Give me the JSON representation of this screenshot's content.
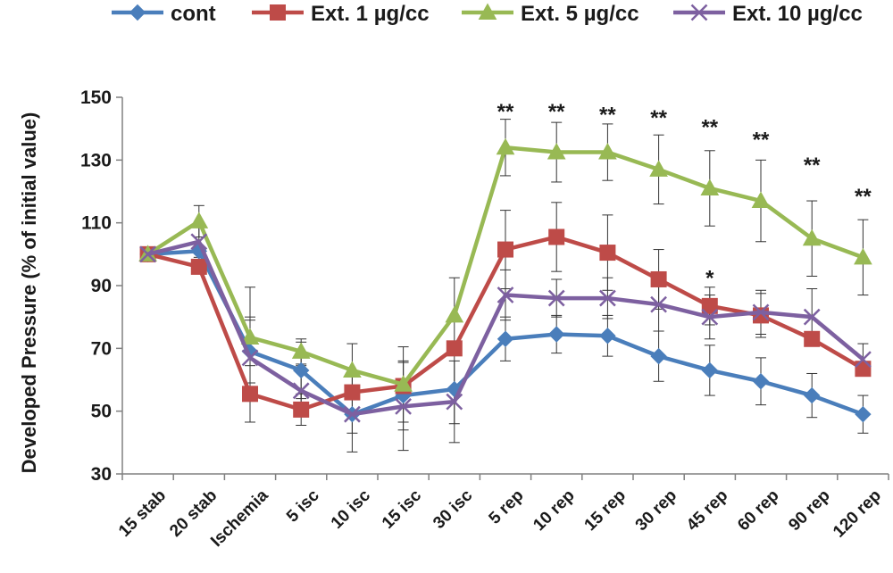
{
  "chart_data": {
    "type": "line",
    "title": "",
    "xlabel": "",
    "ylabel": "Developed Pressure (% of initial value)",
    "ylim": [
      30,
      150
    ],
    "yticks": [
      30,
      50,
      70,
      90,
      110,
      130,
      150
    ],
    "grid": false,
    "legend_position": "top",
    "categories": [
      "15 stab",
      "20 stab",
      "Ischemia",
      "5  isc",
      "10  isc",
      "15  isc",
      "30  isc",
      "5  rep",
      "10 rep",
      "15 rep",
      "30 rep",
      "45 rep",
      "60 rep",
      "90 rep",
      "120 rep"
    ],
    "series": [
      {
        "name": "cont",
        "color": "#4a7ebb",
        "marker": "diamond",
        "values": [
          100,
          101,
          69,
          63,
          49,
          55,
          57,
          73,
          74.5,
          74,
          67.5,
          63,
          59.5,
          55,
          49
        ],
        "errors": [
          0,
          0,
          10,
          9,
          12,
          11,
          11,
          7,
          6,
          6.5,
          8,
          8,
          7.5,
          7,
          6
        ]
      },
      {
        "name": "Ext. 1 µg/cc",
        "color": "#be4b48",
        "marker": "square",
        "values": [
          100,
          96,
          55.5,
          50.5,
          56,
          58,
          70,
          101.5,
          105.5,
          100.5,
          92,
          83.5,
          80.5,
          73,
          63.5
        ],
        "errors": [
          0,
          0,
          9,
          5,
          0,
          0,
          0,
          12.5,
          11,
          12,
          9.5,
          6,
          7,
          0,
          0
        ]
      },
      {
        "name": "Ext. 5 µg/cc",
        "color": "#98b954",
        "marker": "triangle",
        "values": [
          100,
          110.5,
          73.5,
          69,
          63,
          58.5,
          80.5,
          134,
          132.5,
          132.5,
          127,
          121,
          117,
          105,
          99
        ],
        "errors": [
          0,
          5,
          16,
          4,
          8.5,
          12,
          12,
          9,
          9.5,
          9,
          11,
          12,
          13,
          12,
          12
        ]
      },
      {
        "name": "Ext. 10 µg/cc",
        "color": "#7d60a0",
        "marker": "x",
        "values": [
          100,
          104,
          67,
          56.5,
          49,
          51.5,
          53,
          87,
          86,
          86,
          84,
          80,
          81.5,
          80,
          66.5
        ],
        "errors": [
          0,
          5,
          13,
          8,
          6,
          14,
          13,
          8,
          6,
          6.5,
          8.5,
          7,
          7,
          9,
          5
        ]
      }
    ],
    "annotations": [
      {
        "category": "5  rep",
        "text": "**",
        "y": 146
      },
      {
        "category": "10 rep",
        "text": "**",
        "y": 146
      },
      {
        "category": "15 rep",
        "text": "**",
        "y": 145
      },
      {
        "category": "30 rep",
        "text": "**",
        "y": 144
      },
      {
        "category": "45 rep",
        "text": "**",
        "y": 141
      },
      {
        "category": "60 rep",
        "text": "**",
        "y": 137
      },
      {
        "category": "90 rep",
        "text": "**",
        "y": 129
      },
      {
        "category": "120 rep",
        "text": "**",
        "y": 119
      },
      {
        "category": "45 rep",
        "text": "*",
        "y": 93
      }
    ]
  }
}
